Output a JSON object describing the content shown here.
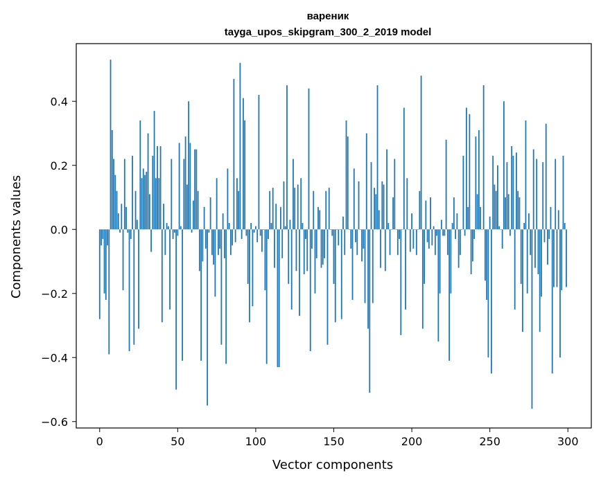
{
  "chart_data": {
    "type": "bar",
    "title": "вареник",
    "subtitle": "tayga_upos_skipgram_300_2_2019 model",
    "xlabel": "Vector components",
    "ylabel": "Components values",
    "xlim": [
      -15,
      315
    ],
    "ylim": [
      -0.62,
      0.58
    ],
    "x_ticks": [
      0,
      50,
      100,
      150,
      200,
      250,
      300
    ],
    "x_tick_labels": [
      "0",
      "50",
      "100",
      "150",
      "200",
      "250",
      "300"
    ],
    "y_ticks": [
      -0.6,
      -0.4,
      -0.2,
      0.0,
      0.2,
      0.4
    ],
    "y_tick_labels": [
      "−0.6",
      "−0.4",
      "−0.2",
      "0.0",
      "0.2",
      "0.4"
    ],
    "grid": false,
    "bar_color": "#1f77b4",
    "x": [
      0,
      1,
      2,
      3,
      4,
      5,
      6,
      7,
      8,
      9,
      10,
      11,
      12,
      13,
      14,
      15,
      16,
      17,
      18,
      19,
      20,
      21,
      22,
      23,
      24,
      25,
      26,
      27,
      28,
      29,
      30,
      31,
      32,
      33,
      34,
      35,
      36,
      37,
      38,
      39,
      40,
      41,
      42,
      43,
      44,
      45,
      46,
      47,
      48,
      49,
      50,
      51,
      52,
      53,
      54,
      55,
      56,
      57,
      58,
      59,
      60,
      61,
      62,
      63,
      64,
      65,
      66,
      67,
      68,
      69,
      70,
      71,
      72,
      73,
      74,
      75,
      76,
      77,
      78,
      79,
      80,
      81,
      82,
      83,
      84,
      85,
      86,
      87,
      88,
      89,
      90,
      91,
      92,
      93,
      94,
      95,
      96,
      97,
      98,
      99,
      100,
      101,
      102,
      103,
      104,
      105,
      106,
      107,
      108,
      109,
      110,
      111,
      112,
      113,
      114,
      115,
      116,
      117,
      118,
      119,
      120,
      121,
      122,
      123,
      124,
      125,
      126,
      127,
      128,
      129,
      130,
      131,
      132,
      133,
      134,
      135,
      136,
      137,
      138,
      139,
      140,
      141,
      142,
      143,
      144,
      145,
      146,
      147,
      148,
      149,
      150,
      151,
      152,
      153,
      154,
      155,
      156,
      157,
      158,
      159,
      160,
      161,
      162,
      163,
      164,
      165,
      166,
      167,
      168,
      169,
      170,
      171,
      172,
      173,
      174,
      175,
      176,
      177,
      178,
      179,
      180,
      181,
      182,
      183,
      184,
      185,
      186,
      187,
      188,
      189,
      190,
      191,
      192,
      193,
      194,
      195,
      196,
      197,
      198,
      199,
      200,
      201,
      202,
      203,
      204,
      205,
      206,
      207,
      208,
      209,
      210,
      211,
      212,
      213,
      214,
      215,
      216,
      217,
      218,
      219,
      220,
      221,
      222,
      223,
      224,
      225,
      226,
      227,
      228,
      229,
      230,
      231,
      232,
      233,
      234,
      235,
      236,
      237,
      238,
      239,
      240,
      241,
      242,
      243,
      244,
      245,
      246,
      247,
      248,
      249,
      250,
      251,
      252,
      253,
      254,
      255,
      256,
      257,
      258,
      259,
      260,
      261,
      262,
      263,
      264,
      265,
      266,
      267,
      268,
      269,
      270,
      271,
      272,
      273,
      274,
      275,
      276,
      277,
      278,
      279,
      280,
      281,
      282,
      283,
      284,
      285,
      286,
      287,
      288,
      289,
      290,
      291,
      292,
      293,
      294,
      295,
      296,
      297,
      298,
      299
    ],
    "values": [
      -0.28,
      -0.05,
      -0.03,
      -0.2,
      -0.22,
      -0.05,
      -0.39,
      0.53,
      0.31,
      0.22,
      0.17,
      0.12,
      0.05,
      -0.01,
      0.08,
      -0.19,
      0.22,
      0.07,
      -0.01,
      -0.38,
      -0.03,
      0.23,
      -0.36,
      0.12,
      0.03,
      -0.31,
      0.34,
      0.16,
      0.19,
      0.17,
      0.18,
      0.3,
      0.11,
      -0.07,
      0.23,
      0.37,
      0.16,
      0.26,
      0.16,
      0.26,
      -0.29,
      0.08,
      -0.08,
      0.02,
      0.01,
      -0.25,
      0.22,
      -0.03,
      -0.01,
      -0.5,
      -0.02,
      0.27,
      0.01,
      -0.41,
      0.22,
      0.29,
      0.14,
      0.4,
      0.27,
      -0.01,
      0.09,
      0.25,
      0.25,
      0.12,
      -0.13,
      -0.41,
      -0.1,
      0.07,
      -0.06,
      -0.55,
      -0.01,
      0.1,
      -0.08,
      -0.11,
      -0.21,
      0.16,
      -0.08,
      -0.06,
      -0.36,
      0.05,
      -0.09,
      -0.42,
      0.19,
      0.02,
      -0.08,
      -0.05,
      0.47,
      -0.04,
      0.16,
      0.12,
      0.52,
      -0.03,
      0.41,
      0.34,
      -0.02,
      -0.17,
      -0.29,
      0.02,
      -0.24,
      -0.01,
      0.01,
      -0.04,
      0.42,
      -0.02,
      -0.07,
      0.0,
      -0.19,
      -0.42,
      -0.03,
      0.12,
      0.02,
      0.13,
      -0.12,
      0.08,
      -0.43,
      -0.43,
      0.07,
      -0.09,
      0.15,
      0.01,
      0.45,
      -0.17,
      0.03,
      -0.25,
      0.22,
      0.13,
      -0.13,
      0.14,
      -0.27,
      0.16,
      0.02,
      -0.14,
      -0.03,
      -0.13,
      0.44,
      -0.38,
      -0.06,
      0.12,
      -0.2,
      -0.09,
      0.07,
      0.06,
      -0.12,
      -0.11,
      -0.09,
      0.12,
      -0.36,
      0.13,
      0.0,
      -0.02,
      -0.17,
      -0.29,
      0.0,
      -0.05,
      0.0,
      -0.28,
      0.04,
      -0.08,
      0.34,
      0.29,
      0.0,
      -0.06,
      -0.22,
      0.19,
      -0.04,
      -0.08,
      0.15,
      0.0,
      -0.1,
      -0.06,
      -0.23,
      0.3,
      -0.31,
      -0.51,
      0.21,
      -0.23,
      0.13,
      0.11,
      0.45,
      0.06,
      -0.12,
      0.15,
      0.14,
      -0.13,
      0.25,
      0.02,
      -0.08,
      0.0,
      0.1,
      0.22,
      0.0,
      -0.08,
      -0.03,
      -0.33,
      0.0,
      0.38,
      -0.25,
      0.16,
      0.0,
      -0.07,
      0.05,
      -0.06,
      0.0,
      -0.08,
      0.0,
      0.12,
      0.48,
      -0.31,
      -0.17,
      0.09,
      -0.04,
      -0.06,
      0.1,
      -0.05,
      0.01,
      -0.08,
      -0.02,
      -0.35,
      -0.2,
      0.03,
      -0.02,
      -0.02,
      0.28,
      -0.08,
      -0.41,
      -0.2,
      0.02,
      0.1,
      -0.03,
      0.05,
      -0.12,
      -0.08,
      0.0,
      0.23,
      -0.02,
      0.38,
      0.07,
      0.36,
      -0.14,
      -0.1,
      -0.03,
      0.29,
      0.11,
      0.31,
      0.07,
      0.0,
      0.45,
      -0.16,
      -0.22,
      -0.4,
      0.04,
      -0.45,
      0.23,
      0.14,
      0.12,
      0.2,
      0.01,
      0.0,
      -0.06,
      0.4,
      0.1,
      0.21,
      0.11,
      -0.02,
      0.26,
      0.23,
      -0.25,
      0.24,
      0.12,
      0.1,
      -0.17,
      -0.32,
      0.02,
      0.34,
      -0.2,
      0.05,
      -0.08,
      -0.56,
      0.25,
      -0.12,
      0.22,
      -0.14,
      -0.32,
      -0.21,
      0.21,
      -0.04,
      0.33,
      -0.11,
      -0.03,
      0.07,
      -0.45,
      -0.18,
      0.22,
      -0.18,
      0.06,
      -0.4,
      -0.19,
      0.23,
      0.02,
      -0.18
    ]
  }
}
